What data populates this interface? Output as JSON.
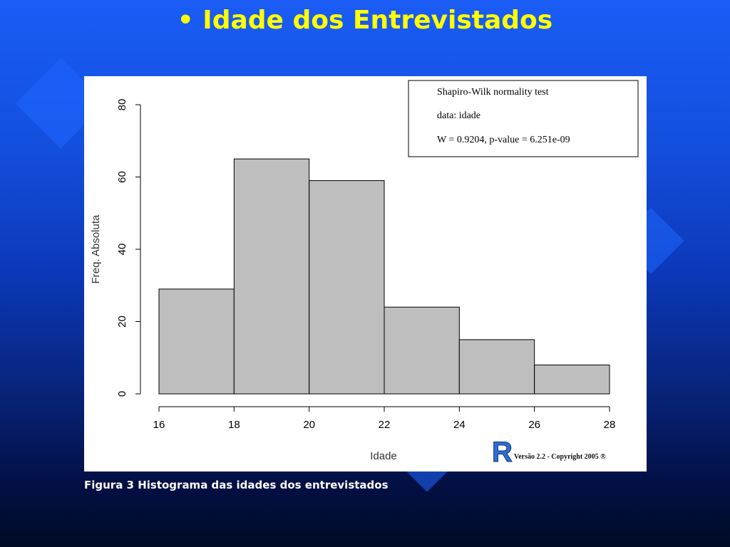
{
  "slide": {
    "title": "• Idade dos Entrevistados",
    "caption": "Figura 3 Histograma das idades dos entrevistados"
  },
  "chart_data": {
    "type": "bar",
    "title": "",
    "xlabel": "Idade",
    "ylabel": "Freq. Absoluta",
    "bins": [
      {
        "from": 16,
        "to": 18,
        "value": 29
      },
      {
        "from": 18,
        "to": 20,
        "value": 65
      },
      {
        "from": 20,
        "to": 22,
        "value": 59
      },
      {
        "from": 22,
        "to": 24,
        "value": 24
      },
      {
        "from": 24,
        "to": 26,
        "value": 15
      },
      {
        "from": 26,
        "to": 28,
        "value": 8
      }
    ],
    "xticks": [
      16,
      18,
      20,
      22,
      24,
      26,
      28
    ],
    "yticks": [
      0,
      20,
      40,
      60,
      80
    ],
    "xlim": [
      16,
      28
    ],
    "ylim": [
      0,
      80
    ],
    "bar_color": "#bebebe",
    "annotation": {
      "position": "top-right",
      "lines": [
        "Shapiro-Wilk normality test",
        "data:  idade",
        "W = 0.9204, p-value = 6.251e-09"
      ]
    }
  },
  "footer": {
    "logo_letter": "R",
    "copyright": "Versão 2.2 - Copyright 2005 ®"
  },
  "colors": {
    "title": "#ffff00",
    "background_top": "#1a5cf5",
    "background_bottom": "#000a24"
  }
}
